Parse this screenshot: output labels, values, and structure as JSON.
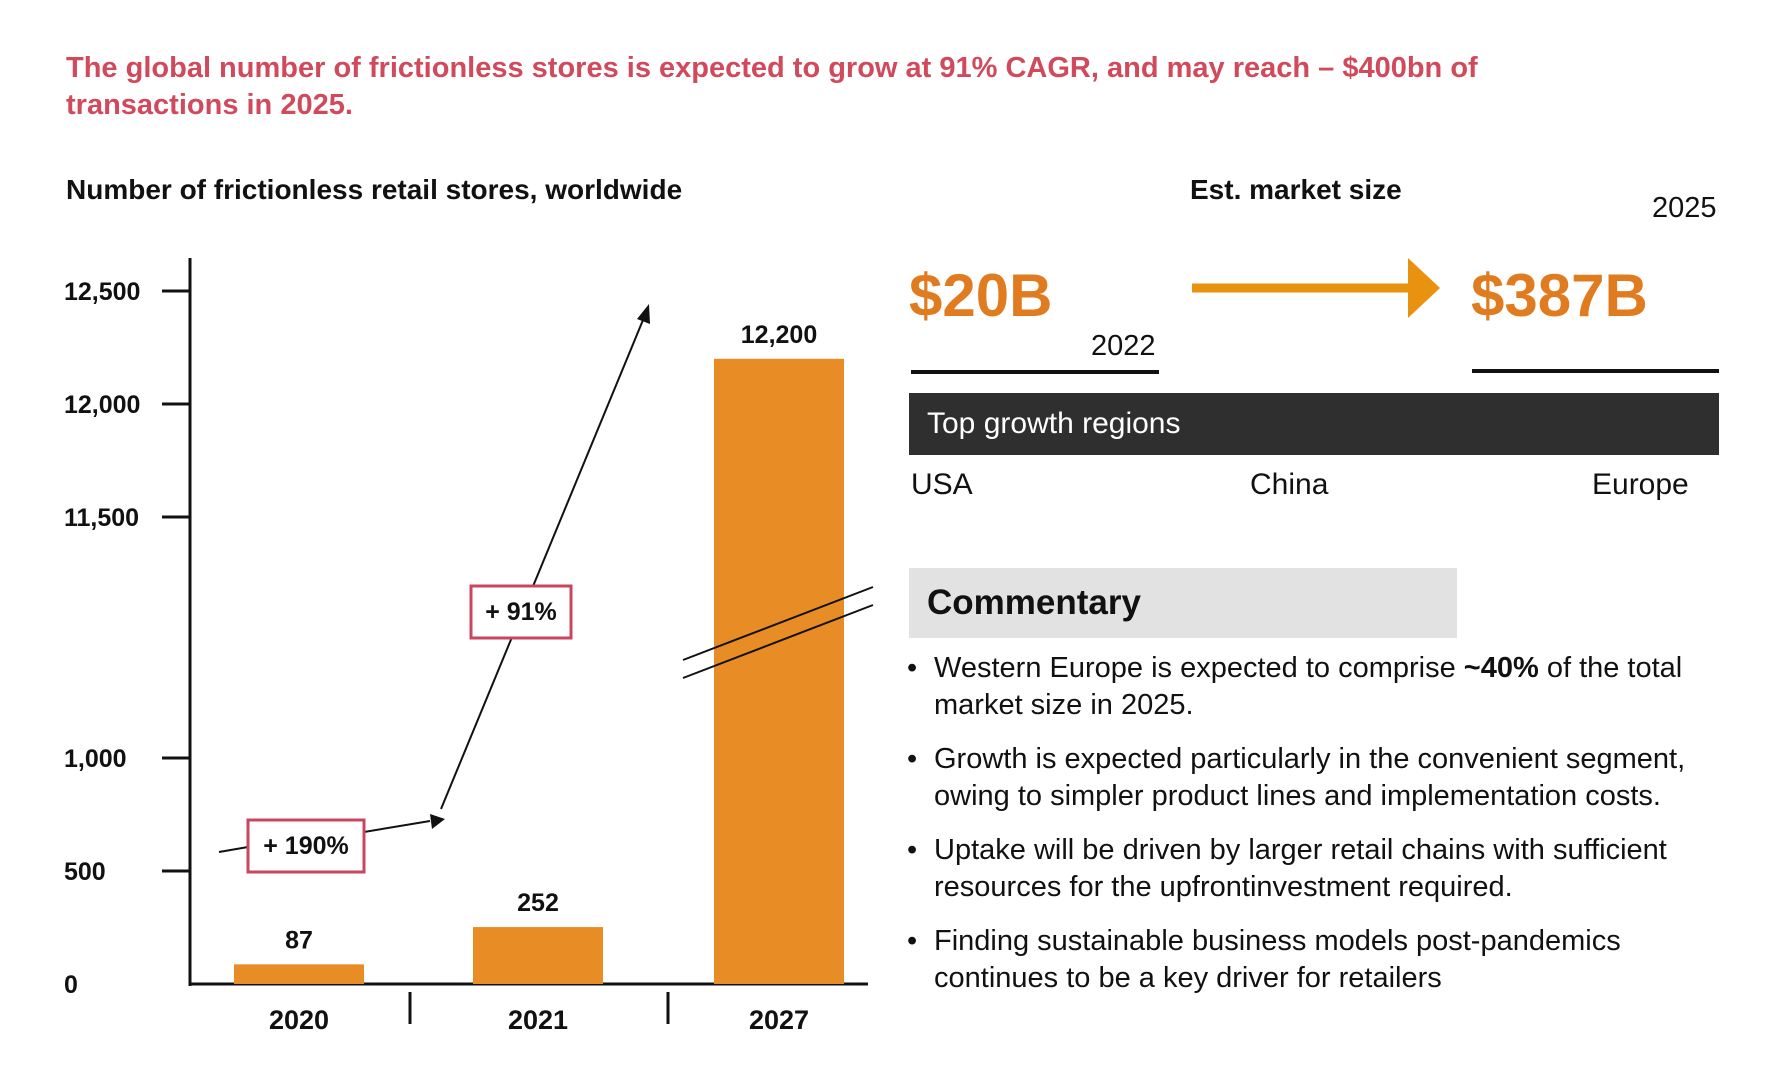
{
  "headline": "The global number of frictionless stores is expected to grow at 91% CAGR, and may reach – $400bn of transactions in 2025.",
  "chart_title": "Number of frictionless retail stores, worldwide",
  "chart_data": {
    "type": "bar",
    "title": "Number of frictionless retail stores, worldwide",
    "categories": [
      "2020",
      "2021",
      "2027"
    ],
    "values": [
      87,
      252,
      12200
    ],
    "data_labels": [
      "87",
      "252",
      "12,200"
    ],
    "y_ticks": [
      "0",
      "500",
      "1,000",
      "11,500",
      "12,000",
      "12,500"
    ],
    "y_tick_values": [
      0,
      500,
      1000,
      11500,
      12000,
      12500
    ],
    "y_axis_break": true,
    "bar_color": "#E88D25",
    "growth_annotations": [
      {
        "label": "+ 190%",
        "from": "2020",
        "to": "2021"
      },
      {
        "label": "+ 91%",
        "from": "2021",
        "to": "2027"
      }
    ],
    "annotation_box_color": "#C8475E",
    "grid": false,
    "legend": "none"
  },
  "market": {
    "title": "Est. market size",
    "from_value": "$20B",
    "from_year": "2022",
    "to_value": "$387B",
    "to_year": "2025",
    "accent_color": "#E07C1F",
    "arrow_color": "#E8920F"
  },
  "regions": {
    "header": "Top growth regions",
    "items": [
      "USA",
      "China",
      "Europe"
    ]
  },
  "commentary": {
    "title": "Commentary",
    "bullets": [
      {
        "pre": "Western Europe is expected to comprise ",
        "bold": "~40%",
        "post": " of the total market size in 2025."
      },
      {
        "pre": "Growth is expected particularly in the convenient segment, owing to simpler product lines and implementation costs.",
        "bold": "",
        "post": ""
      },
      {
        "pre": "Uptake will be driven by larger retail chains with sufficient resources for the upfrontinvestment required.",
        "bold": "",
        "post": ""
      },
      {
        "pre": "Finding sustainable business models post-pandemics continues to be a key driver for retailers",
        "bold": "",
        "post": ""
      }
    ]
  }
}
